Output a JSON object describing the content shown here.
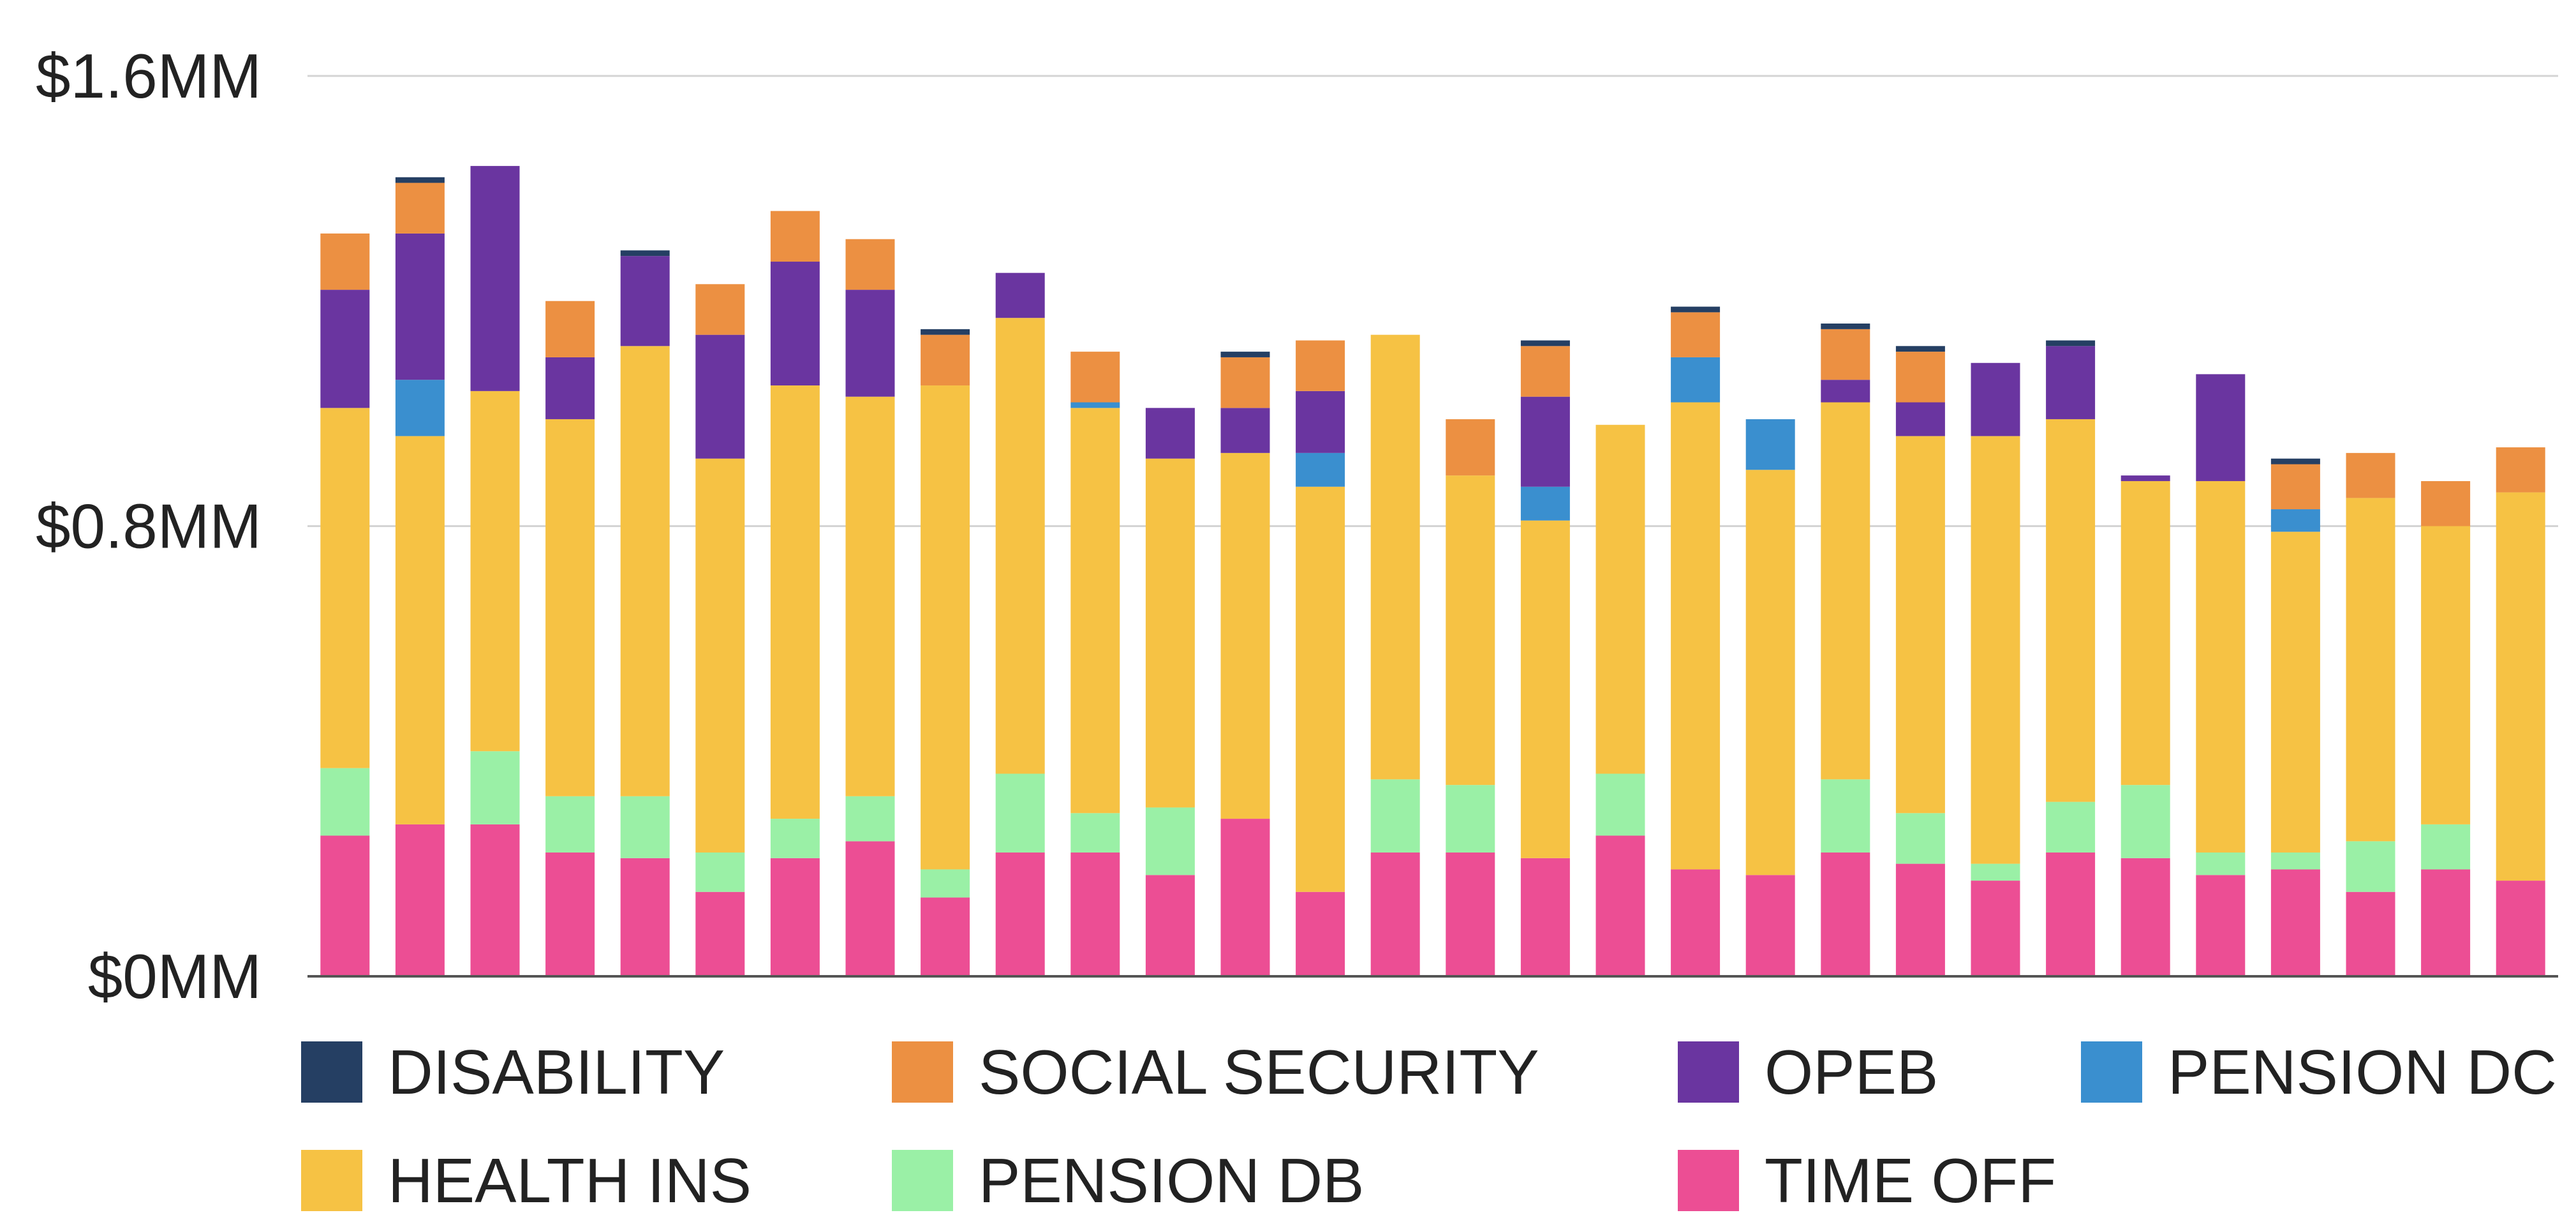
{
  "chart_data": {
    "type": "bar",
    "stacked": true,
    "title": "",
    "xlabel": "",
    "ylabel": "",
    "ylim": [
      0,
      1.6
    ],
    "y_ticks": [
      {
        "value": 0,
        "label": "$0MM"
      },
      {
        "value": 0.8,
        "label": "$0.8MM"
      },
      {
        "value": 1.6,
        "label": "$1.6MM"
      }
    ],
    "grid": true,
    "legend_position": "bottom",
    "category_count": 30,
    "series": [
      {
        "name": "TIME OFF",
        "color": "#EC4E94",
        "values": [
          0.25,
          0.27,
          0.27,
          0.22,
          0.21,
          0.15,
          0.21,
          0.24,
          0.14,
          0.22,
          0.22,
          0.18,
          0.28,
          0.15,
          0.22,
          0.22,
          0.21,
          0.25,
          0.19,
          0.18,
          0.22,
          0.2,
          0.17,
          0.22,
          0.21,
          0.18,
          0.19,
          0.15,
          0.19,
          0.17
        ]
      },
      {
        "name": "PENSION DB",
        "color": "#9AF0A6",
        "values": [
          0.12,
          0.0,
          0.13,
          0.1,
          0.11,
          0.07,
          0.07,
          0.08,
          0.05,
          0.14,
          0.07,
          0.12,
          0.0,
          0.0,
          0.13,
          0.12,
          0.0,
          0.11,
          0.0,
          0.0,
          0.13,
          0.09,
          0.03,
          0.09,
          0.13,
          0.04,
          0.03,
          0.09,
          0.08,
          0.0
        ]
      },
      {
        "name": "HEALTH INS",
        "color": "#F6C244",
        "values": [
          0.64,
          0.69,
          0.64,
          0.67,
          0.8,
          0.7,
          0.77,
          0.71,
          0.86,
          0.81,
          0.72,
          0.62,
          0.65,
          0.72,
          0.79,
          0.55,
          0.6,
          0.62,
          0.83,
          0.72,
          0.67,
          0.67,
          0.76,
          0.68,
          0.54,
          0.66,
          0.57,
          0.61,
          0.53,
          0.69
        ]
      },
      {
        "name": "PENSION DC",
        "color": "#3A8FCF",
        "values": [
          0,
          0.1,
          0,
          0,
          0,
          0,
          0,
          0,
          0,
          0,
          0.01,
          0,
          0,
          0.06,
          0,
          0,
          0.06,
          0,
          0.08,
          0.09,
          0,
          0,
          0,
          0,
          0,
          0,
          0.04,
          0,
          0,
          0
        ]
      },
      {
        "name": "OPEB",
        "color": "#6A35A0",
        "values": [
          0.21,
          0.26,
          0.4,
          0.11,
          0.16,
          0.22,
          0.22,
          0.19,
          0,
          0.08,
          0,
          0.09,
          0.08,
          0.11,
          0,
          0,
          0.16,
          0,
          0,
          0,
          0.04,
          0.06,
          0.13,
          0.13,
          0.01,
          0.19,
          0,
          0,
          0,
          0
        ]
      },
      {
        "name": "SOCIAL SECURITY",
        "color": "#EC9042",
        "values": [
          0.1,
          0.09,
          0,
          0.1,
          0,
          0.09,
          0.09,
          0.09,
          0.09,
          0,
          0.09,
          0,
          0.09,
          0.09,
          0,
          0.1,
          0.09,
          0,
          0.08,
          0,
          0.09,
          0.09,
          0,
          0,
          0,
          0,
          0.08,
          0.08,
          0.08,
          0.08
        ]
      },
      {
        "name": "DISABILITY",
        "color": "#253F63",
        "values": [
          0,
          0.01,
          0,
          0,
          0.01,
          0,
          0,
          0,
          0.01,
          0,
          0,
          0,
          0.01,
          0,
          0,
          0,
          0.01,
          0,
          0.01,
          0,
          0.01,
          0.01,
          0,
          0.01,
          0,
          0,
          0.01,
          0,
          0,
          0
        ]
      }
    ],
    "legend": [
      {
        "name": "DISABILITY",
        "color": "#253F63"
      },
      {
        "name": "SOCIAL SECURITY",
        "color": "#EC9042"
      },
      {
        "name": "OPEB",
        "color": "#6A35A0"
      },
      {
        "name": "PENSION DC",
        "color": "#3A8FCF"
      },
      {
        "name": "HEALTH INS",
        "color": "#F6C244"
      },
      {
        "name": "PENSION DB",
        "color": "#9AF0A6"
      },
      {
        "name": "TIME OFF",
        "color": "#EC4E94"
      }
    ]
  }
}
